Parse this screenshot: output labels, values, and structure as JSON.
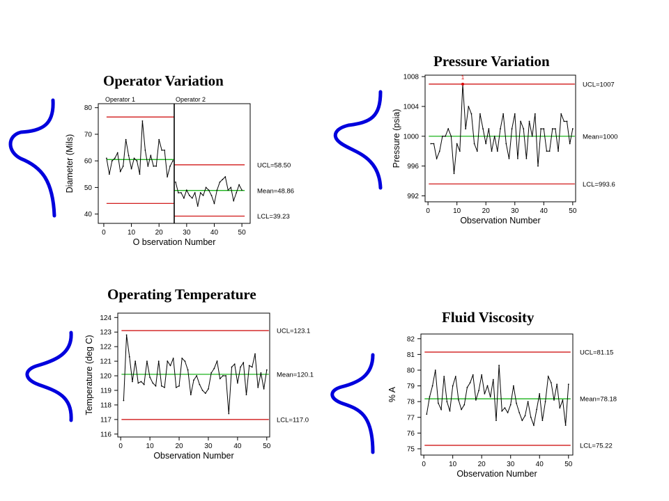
{
  "colors": {
    "ucl_lcl": "#cc0000",
    "mean": "#00aa00",
    "data_line": "#000000",
    "bell": "#0000dd",
    "marker": "#dd0000"
  },
  "titles": {
    "operator": "Operator Variation",
    "pressure": "Pressure Variation",
    "temperature": "Operating Temperature",
    "viscosity": "Fluid Viscosity"
  },
  "chart_data": [
    {
      "id": "operator",
      "type": "line",
      "title": "Operator Variation",
      "xlabel": "O bservation Number",
      "ylabel": "Diameter (Mils)",
      "xlim": [
        -2,
        53
      ],
      "ylim": [
        36.5,
        81.5
      ],
      "xticks": [
        0,
        10,
        20,
        30,
        40,
        50
      ],
      "yticks": [
        40,
        50,
        60,
        70,
        80
      ],
      "ytick_labels": [
        "40",
        "50",
        "60",
        "70",
        "80"
      ],
      "phase_split": 25.5,
      "phase_labels": [
        "Operator 1",
        "Operator 2"
      ],
      "x": [
        1,
        2,
        3,
        4,
        5,
        6,
        7,
        8,
        9,
        10,
        11,
        12,
        13,
        14,
        15,
        16,
        17,
        18,
        19,
        20,
        21,
        22,
        23,
        24,
        25,
        26,
        27,
        28,
        29,
        30,
        31,
        32,
        33,
        34,
        35,
        36,
        37,
        38,
        39,
        40,
        41,
        42,
        43,
        44,
        45,
        46,
        47,
        48,
        49,
        50
      ],
      "values": [
        61,
        55,
        60,
        61,
        63,
        56,
        58,
        68,
        62,
        57,
        61,
        60,
        55,
        75,
        64,
        58,
        62,
        58,
        58,
        68,
        64,
        64,
        54,
        58,
        60,
        52,
        48,
        48,
        46,
        49,
        47,
        46,
        48,
        43,
        48,
        47,
        50,
        49,
        47,
        44,
        49,
        52,
        53,
        54,
        49,
        50,
        45,
        48,
        51,
        49
      ],
      "limit_segments": [
        {
          "y": 76.5,
          "x0": 1,
          "x1": 25.5
        },
        {
          "y": 60.5,
          "x0": 1,
          "x1": 25.5,
          "kind": "mean"
        },
        {
          "y": 44,
          "x0": 1,
          "x1": 25.5
        },
        {
          "y": 58.5,
          "x0": 25.5,
          "x1": 51
        },
        {
          "y": 48.86,
          "x0": 25.5,
          "x1": 51,
          "kind": "mean"
        },
        {
          "y": 39.23,
          "x0": 25.5,
          "x1": 51
        }
      ],
      "labels": [
        {
          "text": "UCL=58.50",
          "y": 58.5
        },
        {
          "text": "Mean=48.86",
          "y": 48.86
        },
        {
          "text": "LCL=39.23",
          "y": 39.23
        }
      ]
    },
    {
      "id": "pressure",
      "type": "line",
      "title": "Pressure Variation",
      "xlabel": "Observation Number",
      "ylabel": "Pressure (psia)",
      "xlim": [
        -1,
        51
      ],
      "ylim": [
        991.2,
        1008.2
      ],
      "xticks": [
        0,
        10,
        20,
        30,
        40,
        50
      ],
      "yticks": [
        992,
        996,
        1000,
        1004,
        1008
      ],
      "ytick_labels": [
        "992",
        "996",
        "1000",
        "1004",
        "1008"
      ],
      "x": [
        1,
        2,
        3,
        4,
        5,
        6,
        7,
        8,
        9,
        10,
        11,
        12,
        13,
        14,
        15,
        16,
        17,
        18,
        19,
        20,
        21,
        22,
        23,
        24,
        25,
        26,
        27,
        28,
        29,
        30,
        31,
        32,
        33,
        34,
        35,
        36,
        37,
        38,
        39,
        40,
        41,
        42,
        43,
        44,
        45,
        46,
        47,
        48,
        49,
        50
      ],
      "values": [
        999,
        999,
        997,
        998,
        1000,
        1000,
        1001,
        1000,
        995,
        999,
        998,
        1007,
        1001,
        1004,
        1003,
        999,
        998,
        1003,
        1001,
        999,
        1001,
        998,
        1000,
        998,
        1001,
        1003,
        999,
        997,
        1001,
        1003,
        997,
        1002,
        1001,
        997,
        1002,
        1000,
        1003,
        996,
        1001,
        1001,
        998,
        998,
        1001,
        1001,
        998,
        1003,
        1002,
        1002,
        999,
        1001
      ],
      "out_of_control": {
        "x": 12,
        "label": "1"
      },
      "limits": {
        "ucl": 1007,
        "mean": 1000,
        "lcl": 993.6
      },
      "labels": [
        {
          "text": "UCL=1007",
          "y": 1007
        },
        {
          "text": "Mean=1000",
          "y": 1000
        },
        {
          "text": "LCL=993.6",
          "y": 993.6
        }
      ]
    },
    {
      "id": "temperature",
      "type": "line",
      "title": "Operating Temperature",
      "xlabel": "Observation Number",
      "ylabel": "Temperature (deg C)",
      "xlim": [
        -1,
        51
      ],
      "ylim": [
        115.8,
        124.3
      ],
      "xticks": [
        0,
        10,
        20,
        30,
        40,
        50
      ],
      "yticks": [
        116,
        117,
        118,
        119,
        120,
        121,
        122,
        123,
        124
      ],
      "ytick_labels": [
        "116",
        "117",
        "118",
        "119",
        "120",
        "121",
        "122",
        "123",
        "124"
      ],
      "x": [
        1,
        2,
        3,
        4,
        5,
        6,
        7,
        8,
        9,
        10,
        11,
        12,
        13,
        14,
        15,
        16,
        17,
        18,
        19,
        20,
        21,
        22,
        23,
        24,
        25,
        26,
        27,
        28,
        29,
        30,
        31,
        32,
        33,
        34,
        35,
        36,
        37,
        38,
        39,
        40,
        41,
        42,
        43,
        44,
        45,
        46,
        47,
        48,
        49,
        50
      ],
      "values": [
        118.3,
        122.8,
        121.3,
        119.6,
        121,
        119.5,
        119.6,
        119.4,
        121,
        119.9,
        119.5,
        119.3,
        121,
        119.3,
        119.2,
        121,
        120.7,
        121.2,
        119.2,
        119.3,
        121.2,
        121,
        120.4,
        118.7,
        119.7,
        120,
        119.4,
        119,
        118.8,
        119.1,
        120.2,
        120.5,
        121,
        119.8,
        120,
        120,
        117.4,
        120.6,
        120.8,
        119.5,
        120.6,
        120.9,
        118.7,
        120.7,
        120.6,
        121.5,
        119.2,
        120.2,
        119.1,
        120.4
      ],
      "limits": {
        "ucl": 123.1,
        "mean": 120.1,
        "lcl": 117.0
      },
      "labels": [
        {
          "text": "UCL=123.1",
          "y": 123.1
        },
        {
          "text": "Mean=120.1",
          "y": 120.1
        },
        {
          "text": "LCL=117.0",
          "y": 117.0
        }
      ]
    },
    {
      "id": "viscosity",
      "type": "line",
      "title": "Fluid Viscosity",
      "xlabel": "Observation Number",
      "ylabel": "% A",
      "xlim": [
        -1,
        51.5
      ],
      "ylim": [
        74.6,
        82.3
      ],
      "xticks": [
        0,
        10,
        20,
        30,
        40,
        50
      ],
      "yticks": [
        75,
        76,
        77,
        78,
        79,
        80,
        81,
        82
      ],
      "ytick_labels": [
        "75",
        "76",
        "77",
        "78",
        "79",
        "80",
        "81",
        "82"
      ],
      "x": [
        1,
        2,
        3,
        4,
        5,
        6,
        7,
        8,
        9,
        10,
        11,
        12,
        13,
        14,
        15,
        16,
        17,
        18,
        19,
        20,
        21,
        22,
        23,
        24,
        25,
        26,
        27,
        28,
        29,
        30,
        31,
        32,
        33,
        34,
        35,
        36,
        37,
        38,
        39,
        40,
        41,
        42,
        43,
        44,
        45,
        46,
        47,
        48,
        49,
        50
      ],
      "values": [
        77.2,
        78.3,
        79,
        80,
        77.9,
        77.5,
        79.6,
        78,
        77.4,
        79,
        79.6,
        78.1,
        77.5,
        77.8,
        78.9,
        79.2,
        79.7,
        78.1,
        78.7,
        79.7,
        78.5,
        79,
        78.3,
        79.4,
        76.8,
        80.3,
        77.4,
        77.6,
        77.3,
        77.8,
        79,
        77.9,
        77.3,
        76.8,
        77.1,
        78,
        77,
        76.5,
        77.5,
        78.5,
        76.8,
        78,
        79.6,
        79.2,
        78.1,
        79.1,
        77.6,
        78.1,
        76.5,
        79.1
      ],
      "limits": {
        "ucl": 81.15,
        "mean": 78.18,
        "lcl": 75.22
      },
      "labels": [
        {
          "text": "UCL=81.15",
          "y": 81.15
        },
        {
          "text": "Mean=78.18",
          "y": 78.18
        },
        {
          "text": "LCL=75.22",
          "y": 75.22
        }
      ]
    }
  ]
}
